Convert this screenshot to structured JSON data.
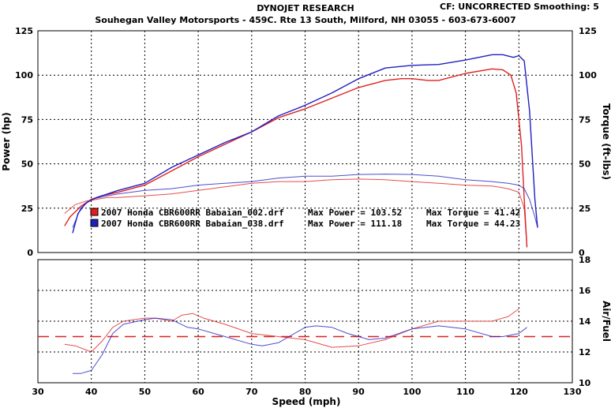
{
  "header": {
    "title": "DYNOJET RESEARCH",
    "cf": "CF: UNCORRECTED",
    "smoothing": "Smoothing: 5",
    "shop": "Souhegan Valley Motorsports - 459C. Rte 13 South, Milford, NH 03055 - 603-673-6007"
  },
  "colors": {
    "run1": "#e02020",
    "run2": "#2020c0",
    "afr_target": "#e02020"
  },
  "chart_data": [
    {
      "type": "line",
      "xlabel": "Speed (mph)",
      "ylabel": "Power (hp)",
      "ylabel_right": "Torque (ft-lbs)",
      "xlim": [
        30,
        130
      ],
      "ylim": [
        0,
        125
      ],
      "x_ticks": [
        30,
        40,
        50,
        60,
        70,
        80,
        90,
        100,
        110,
        120,
        130
      ],
      "y_ticks": [
        0,
        25,
        50,
        75,
        100,
        125
      ],
      "grid": true,
      "legend": [
        {
          "file": "2007 Honda CBR600RR Babaian_002.drf",
          "max_power": "Max Power = 103.52",
          "max_torque": "Max Torque = 41.42"
        },
        {
          "file": "2007 Honda CBR600RR Babaian_038.drf",
          "max_power": "Max Power = 111.18",
          "max_torque": "Max Torque = 44.23"
        }
      ],
      "series": [
        {
          "metric": "power",
          "run": 1,
          "x": [
            35,
            36,
            38,
            40,
            42,
            45,
            50,
            55,
            60,
            65,
            70,
            75,
            80,
            85,
            90,
            95,
            98,
            100,
            103,
            105,
            110,
            115,
            117,
            118.5,
            119.5,
            120.5,
            121,
            121.5
          ],
          "y": [
            15,
            20,
            26,
            30,
            32,
            34,
            38,
            46,
            54,
            61,
            68,
            76,
            81,
            87,
            93,
            97,
            98,
            98,
            97,
            97,
            101,
            103.5,
            103,
            100,
            90,
            60,
            30,
            3
          ]
        },
        {
          "metric": "power",
          "run": 2,
          "x": [
            36.5,
            37.5,
            39,
            41,
            43,
            45,
            50,
            55,
            60,
            65,
            70,
            75,
            80,
            85,
            90,
            95,
            100,
            105,
            110,
            115,
            117,
            119,
            120,
            121,
            122,
            123,
            123.5
          ],
          "y": [
            11,
            22,
            28,
            31,
            33,
            35,
            39,
            48,
            55,
            62,
            68,
            77,
            83,
            90,
            98,
            104,
            105.5,
            106,
            108.5,
            111.5,
            111.5,
            110,
            111,
            108,
            80,
            30,
            14
          ]
        },
        {
          "metric": "torque",
          "run": 1,
          "x": [
            35,
            37,
            39,
            41,
            43,
            45,
            50,
            55,
            60,
            65,
            70,
            75,
            80,
            85,
            90,
            95,
            100,
            105,
            110,
            115,
            118,
            120,
            121,
            121.5
          ],
          "y": [
            22,
            27,
            29,
            30,
            31,
            31,
            32,
            33,
            35,
            37,
            39,
            40,
            40,
            41,
            41.4,
            41,
            40,
            39,
            38,
            37.5,
            36,
            34,
            25,
            3
          ]
        },
        {
          "metric": "torque",
          "run": 2,
          "x": [
            36.5,
            38,
            40,
            43,
            45,
            50,
            55,
            60,
            65,
            70,
            75,
            80,
            85,
            90,
            95,
            100,
            105,
            110,
            115,
            118,
            120,
            121,
            122,
            123,
            123.5
          ],
          "y": [
            14,
            25,
            30,
            32,
            33,
            35,
            36,
            38,
            39,
            40,
            42,
            43,
            43,
            44,
            44.2,
            44,
            43,
            41,
            40,
            39,
            38,
            36,
            30,
            20,
            14
          ]
        }
      ]
    },
    {
      "type": "line",
      "xlabel": "Speed (mph)",
      "ylabel_right": "Air/Fuel",
      "xlim": [
        30,
        130
      ],
      "ylim": [
        10,
        18
      ],
      "y_ticks": [
        10,
        12,
        14,
        16,
        18
      ],
      "target": 13,
      "grid": true,
      "series": [
        {
          "metric": "afr",
          "run": 1,
          "x": [
            35,
            37,
            40,
            42,
            44,
            46,
            50,
            52,
            55,
            57,
            59,
            61,
            65,
            70,
            75,
            80,
            85,
            90,
            95,
            100,
            105,
            110,
            115,
            118,
            120
          ],
          "y": [
            12.5,
            12.4,
            12.0,
            12.7,
            13.6,
            14.0,
            14.2,
            14.2,
            14.0,
            14.4,
            14.5,
            14.2,
            13.8,
            13.2,
            13.0,
            12.8,
            12.3,
            12.4,
            12.8,
            13.5,
            14.0,
            14.0,
            14.0,
            14.3,
            14.8
          ]
        },
        {
          "metric": "afr",
          "run": 2,
          "x": [
            36.5,
            38,
            40,
            42,
            44,
            46,
            50,
            52,
            55,
            58,
            60,
            65,
            70,
            72,
            75,
            80,
            82,
            85,
            88,
            92,
            95,
            100,
            105,
            110,
            115,
            117,
            120,
            121.5
          ],
          "y": [
            10.6,
            10.6,
            10.8,
            11.8,
            13.2,
            13.8,
            14.1,
            14.2,
            14.1,
            13.6,
            13.5,
            13.0,
            12.5,
            12.4,
            12.6,
            13.6,
            13.7,
            13.6,
            13.2,
            12.8,
            12.9,
            13.5,
            13.7,
            13.5,
            13.0,
            13.0,
            13.2,
            13.6
          ]
        }
      ]
    }
  ]
}
